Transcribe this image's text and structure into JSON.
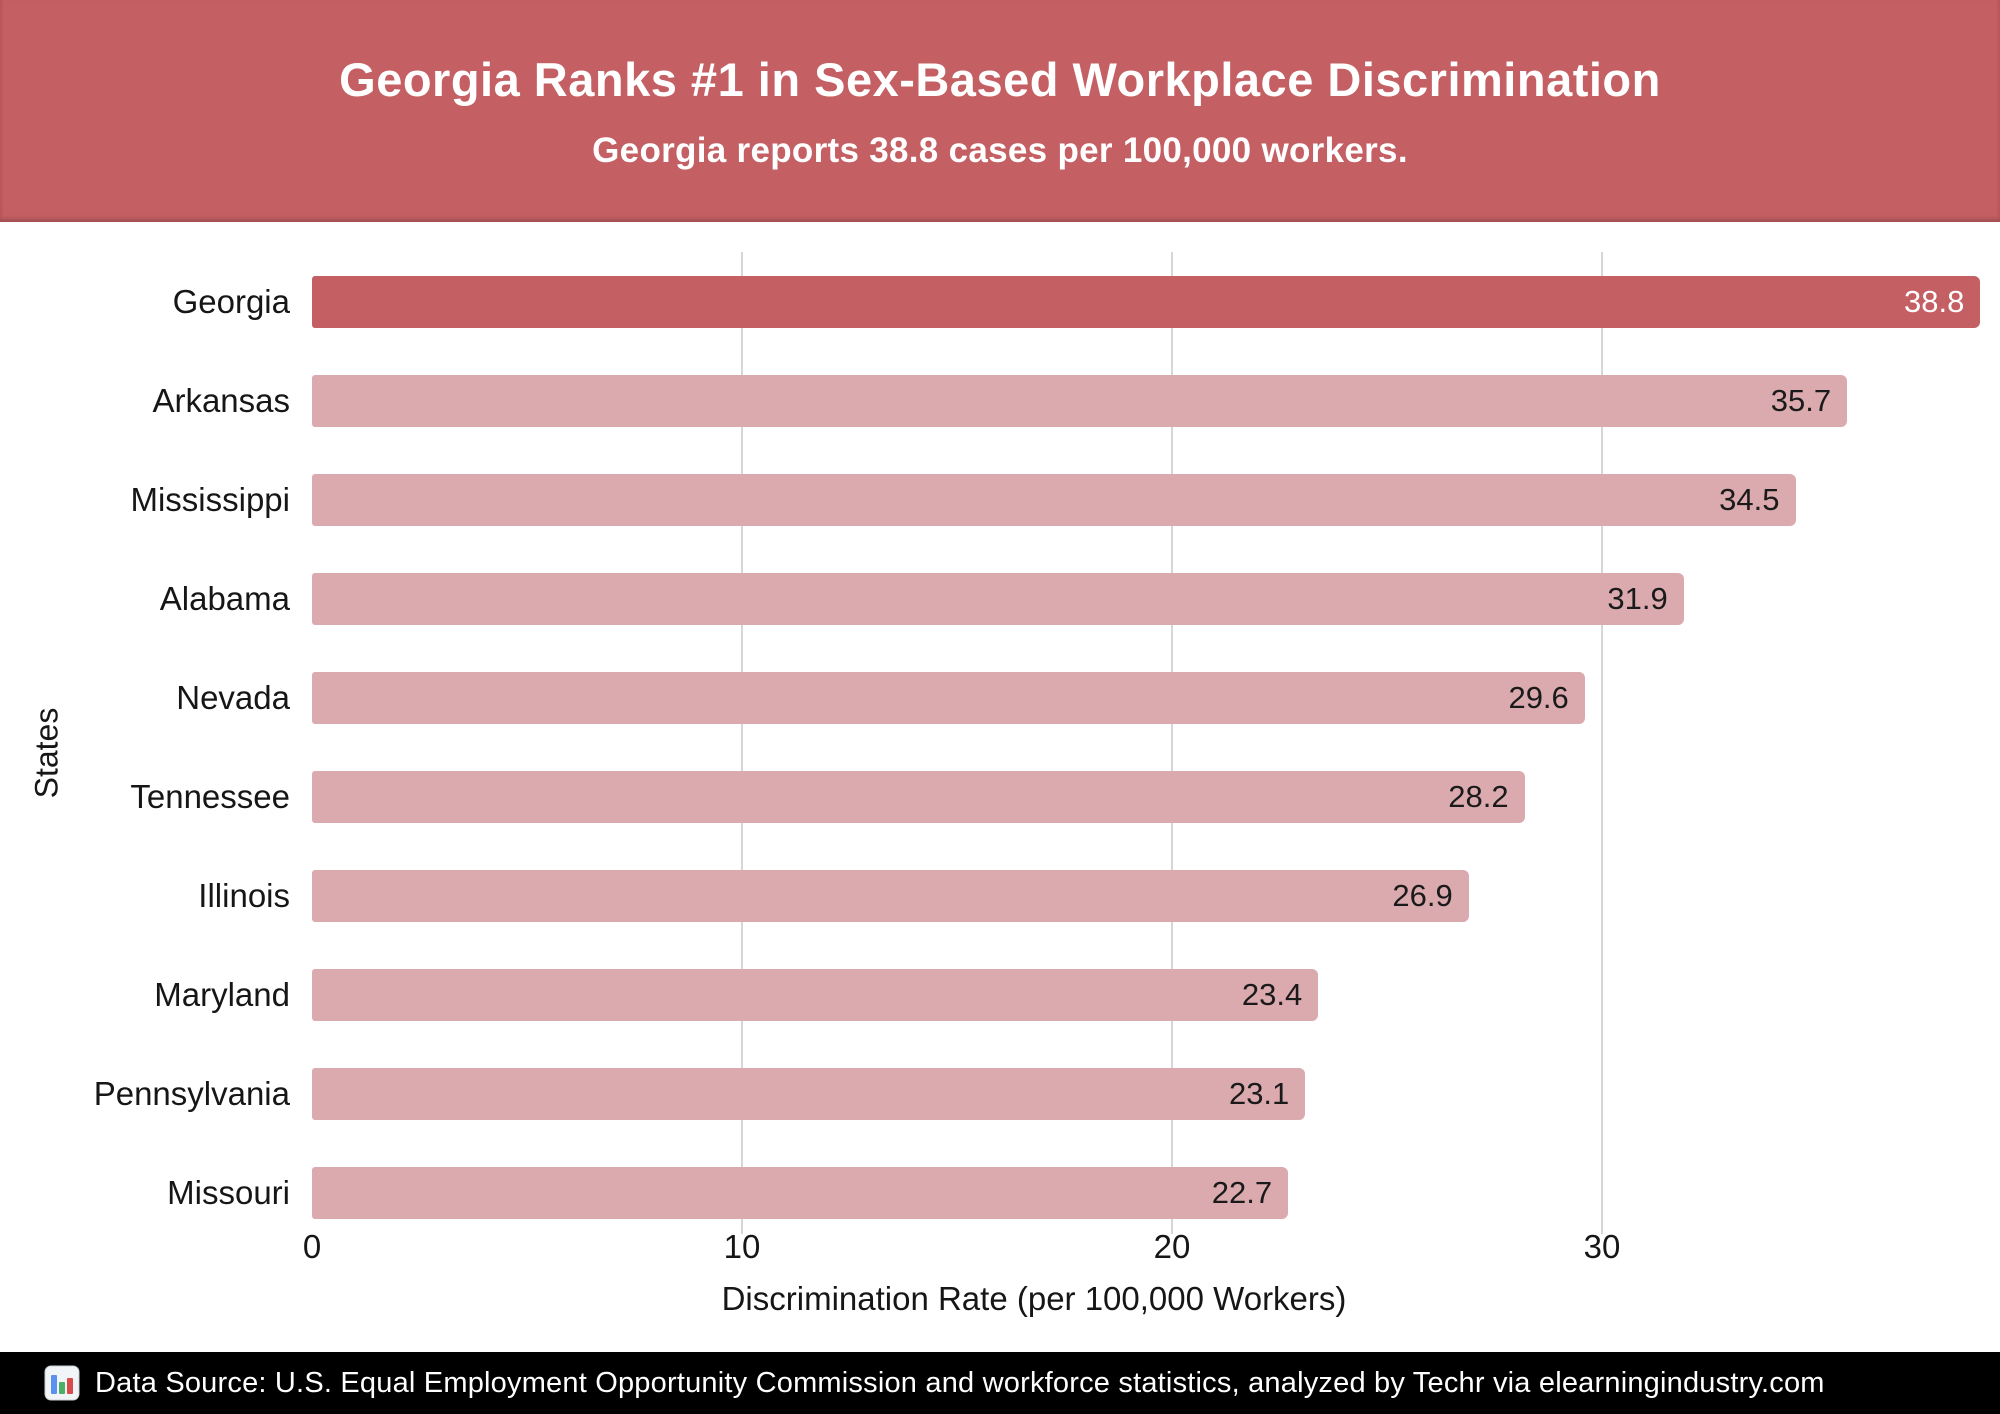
{
  "header": {
    "title": "Georgia Ranks #1 in Sex-Based Workplace Discrimination",
    "subtitle": "Georgia reports 38.8 cases per 100,000 workers."
  },
  "chart_data": {
    "type": "bar",
    "orientation": "horizontal",
    "categories": [
      "Georgia",
      "Arkansas",
      "Mississippi",
      "Alabama",
      "Nevada",
      "Tennessee",
      "Illinois",
      "Maryland",
      "Pennsylvania",
      "Missouri"
    ],
    "values": [
      38.8,
      35.7,
      34.5,
      31.9,
      29.6,
      28.2,
      26.9,
      23.4,
      23.1,
      22.7
    ],
    "title": "Georgia Ranks #1 in Sex-Based Workplace Discrimination",
    "xlabel": "Discrimination Rate (per 100,000 Workers)",
    "ylabel": "States",
    "xlim": [
      0,
      39
    ],
    "xticks": [
      0,
      10,
      20,
      30
    ],
    "grid": "vertical-gridlines-at-ticks",
    "legend": "none",
    "highlight_category": "Georgia",
    "value_labels": "inside-end-of-bar"
  },
  "colors": {
    "header_bg": "#c45f63",
    "bar_highlight": "#c45f63",
    "bar": "#dbaaae",
    "grid": "#d6d6d6",
    "footer_bg": "#000000",
    "value_text_on_light": "#1a1a1a",
    "value_text_on_highlight": "#ffffff"
  },
  "footer": {
    "icon": "bar-chart-icon",
    "text": "Data Source: U.S. Equal Employment Opportunity Commission and workforce statistics, analyzed by Techr via elearningindustry.com"
  }
}
